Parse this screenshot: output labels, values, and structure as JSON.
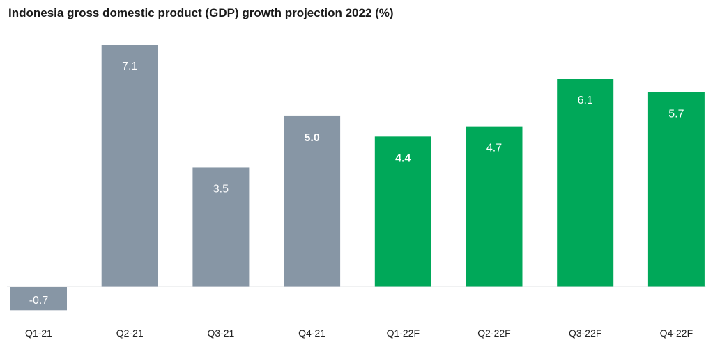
{
  "chart_data": {
    "type": "bar",
    "title": "Indonesia gross domestic product (GDP) growth projection 2022 (%)",
    "categories": [
      "Q1-21",
      "Q2-21",
      "Q3-21",
      "Q4-21",
      "Q1-22F",
      "Q2-22F",
      "Q3-22F",
      "Q4-22F"
    ],
    "values": [
      -0.7,
      7.1,
      3.5,
      5.0,
      4.4,
      4.7,
      6.1,
      5.7
    ],
    "value_labels": [
      "-0.7",
      "7.1",
      "3.5",
      "5.0",
      "4.4",
      "4.7",
      "6.1",
      "5.7"
    ],
    "bold_labels": [
      false,
      false,
      false,
      true,
      true,
      false,
      false,
      false
    ],
    "bar_colors": [
      "#8796a5",
      "#8796a5",
      "#8796a5",
      "#8796a5",
      "#00a859",
      "#00a859",
      "#00a859",
      "#00a859"
    ],
    "ylim": [
      -0.7,
      7.1
    ],
    "grid": false,
    "legend": "none",
    "baseline_color": "#e0e3e6"
  }
}
